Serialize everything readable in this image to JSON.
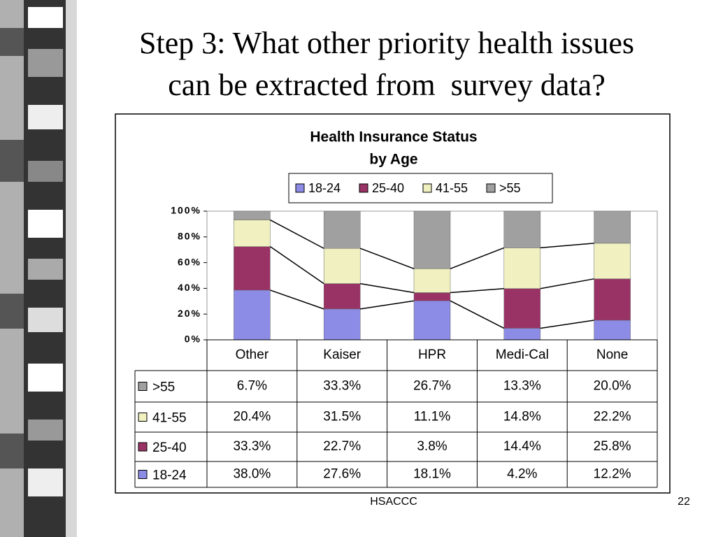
{
  "slide": {
    "title_lines": [
      "Step 3: What other priority health issues",
      "can be extracted from  survey data?"
    ],
    "footer": "HSACCC",
    "page": "22"
  },
  "chart_data": {
    "type": "bar",
    "stacking": "percent",
    "title": "Health Insurance Status",
    "subtitle": "by Age",
    "categories": [
      "Other",
      "Kaiser",
      "HPR",
      "Medi-Cal",
      "None"
    ],
    "series": [
      {
        "name": "18-24",
        "color": "#8c8ce6",
        "values": [
          38.0,
          27.6,
          18.1,
          4.2,
          12.2
        ],
        "value_labels": [
          "38.0%",
          "27.6%",
          "18.1%",
          "4.2%",
          "12.2%"
        ]
      },
      {
        "name": "25-40",
        "color": "#993366",
        "values": [
          33.3,
          22.7,
          3.8,
          14.4,
          25.8
        ],
        "value_labels": [
          "33.3%",
          "22.7%",
          "3.8%",
          "14.4%",
          "25.8%"
        ]
      },
      {
        "name": "41-55",
        "color": "#f0f0c0",
        "values": [
          20.4,
          31.5,
          11.1,
          14.8,
          22.2
        ],
        "value_labels": [
          "20.4%",
          "31.5%",
          "11.1%",
          "14.8%",
          "22.2%"
        ]
      },
      {
        "name": ">55",
        "color": "#a0a0a0",
        "values": [
          6.7,
          33.3,
          26.7,
          13.3,
          20.0
        ],
        "value_labels": [
          "6.7%",
          "33.3%",
          "26.7%",
          "13.3%",
          "20.0%"
        ]
      }
    ],
    "ylim": [
      0,
      100
    ],
    "yticks": [
      {
        "value": 0,
        "label": "0%"
      },
      {
        "value": 20,
        "label": "20%"
      },
      {
        "value": 40,
        "label": "40%"
      },
      {
        "value": 60,
        "label": "60%"
      },
      {
        "value": 80,
        "label": "80%"
      },
      {
        "value": 100,
        "label": "100%"
      }
    ],
    "legend": "top",
    "data_table": true
  }
}
